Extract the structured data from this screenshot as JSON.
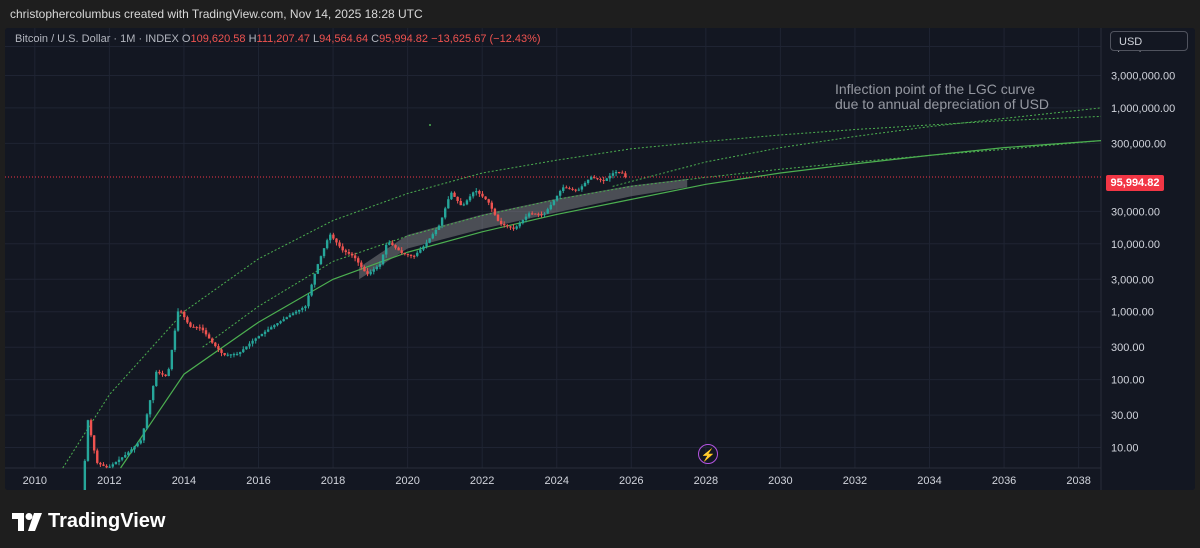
{
  "caption": "christophercolumbus created with TradingView.com, Nov 14, 2025 18:28 UTC",
  "symbol": {
    "name": "Bitcoin / U.S. Dollar · 1M · INDEX",
    "o_label": "O",
    "o": "109,620.58",
    "h_label": "H",
    "h": "111,207.47",
    "l_label": "L",
    "l": "94,564.64",
    "c_label": "C",
    "c": "95,994.82",
    "change": "−13,625.67 (−12.43%)"
  },
  "currency_button": "USD",
  "annotation_line1": "Inflection point of the LGC curve",
  "annotation_line2": "due to annual depreciation of USD",
  "last_price_label": "95,994.82",
  "brand": "TradingView",
  "colors": {
    "background": "#131722",
    "up": "#26a69a",
    "down": "#ef5350",
    "curve": "#4caf50",
    "price_line": "#f23645",
    "bolt": "#b454e0"
  },
  "icons": [
    "bolt-icon",
    "tradingview-logo-icon"
  ],
  "chart_data": {
    "type": "candlestick",
    "scale": "log",
    "x_range": [
      2009.2,
      2038.6
    ],
    "y_range": [
      5,
      15000000
    ],
    "x_ticks": [
      "2010",
      "2012",
      "2014",
      "2016",
      "2018",
      "2020",
      "2022",
      "2024",
      "2026",
      "2028",
      "2030",
      "2032",
      "2034",
      "2036",
      "2038"
    ],
    "y_ticks": [
      {
        "v": 8000000,
        "label": "8,000,000.00"
      },
      {
        "v": 3000000,
        "label": "3,000,000.00"
      },
      {
        "v": 1000000,
        "label": "1,000,000.00"
      },
      {
        "v": 300000,
        "label": "300,000.00"
      },
      {
        "v": 30000,
        "label": "30,000.00"
      },
      {
        "v": 10000,
        "label": "10,000.00"
      },
      {
        "v": 3000,
        "label": "3,000.00"
      },
      {
        "v": 1000,
        "label": "1,000.00"
      },
      {
        "v": 300,
        "label": "300.00"
      },
      {
        "v": 100,
        "label": "100.00"
      },
      {
        "v": 30,
        "label": "30.00"
      },
      {
        "v": 10,
        "label": "10.00"
      }
    ],
    "last_price": 95994.82,
    "price_path": [
      [
        2011.3,
        1
      ],
      [
        2011.45,
        28
      ],
      [
        2011.7,
        6
      ],
      [
        2012.0,
        5
      ],
      [
        2012.5,
        8
      ],
      [
        2012.9,
        13
      ],
      [
        2013.3,
        130
      ],
      [
        2013.6,
        110
      ],
      [
        2013.9,
        1150
      ],
      [
        2014.2,
        600
      ],
      [
        2014.5,
        580
      ],
      [
        2014.8,
        350
      ],
      [
        2015.1,
        230
      ],
      [
        2015.5,
        240
      ],
      [
        2015.9,
        380
      ],
      [
        2016.4,
        600
      ],
      [
        2016.9,
        900
      ],
      [
        2017.3,
        1200
      ],
      [
        2017.6,
        4500
      ],
      [
        2017.95,
        14000
      ],
      [
        2018.3,
        8000
      ],
      [
        2018.6,
        6500
      ],
      [
        2018.95,
        3500
      ],
      [
        2019.3,
        5000
      ],
      [
        2019.5,
        11000
      ],
      [
        2019.9,
        7200
      ],
      [
        2020.2,
        6500
      ],
      [
        2020.5,
        9500
      ],
      [
        2020.9,
        19000
      ],
      [
        2021.2,
        58000
      ],
      [
        2021.5,
        35000
      ],
      [
        2021.85,
        62000
      ],
      [
        2022.2,
        42000
      ],
      [
        2022.5,
        20000
      ],
      [
        2022.9,
        16500
      ],
      [
        2023.3,
        28000
      ],
      [
        2023.7,
        27000
      ],
      [
        2023.95,
        42000
      ],
      [
        2024.2,
        68000
      ],
      [
        2024.6,
        60000
      ],
      [
        2024.95,
        96000
      ],
      [
        2025.3,
        84000
      ],
      [
        2025.6,
        115000
      ],
      [
        2025.8,
        109000
      ],
      [
        2025.87,
        96000
      ]
    ],
    "lines": [
      {
        "style": "dotted",
        "points": [
          [
            2010.75,
            5
          ],
          [
            2012.0,
            60
          ],
          [
            2014.0,
            1000
          ],
          [
            2016.0,
            6000
          ],
          [
            2018.0,
            22000
          ],
          [
            2020.0,
            55000
          ],
          [
            2022.0,
            110000
          ],
          [
            2024.0,
            170000
          ],
          [
            2026.0,
            250000
          ],
          [
            2028.0,
            320000
          ],
          [
            2030.0,
            400000
          ],
          [
            2032.0,
            480000
          ],
          [
            2034.0,
            560000
          ],
          [
            2036.0,
            650000
          ],
          [
            2038.6,
            750000
          ]
        ]
      },
      {
        "style": "dotted",
        "points": [
          [
            2025.5,
            70000
          ],
          [
            2028.0,
            160000
          ],
          [
            2030.0,
            260000
          ],
          [
            2032.0,
            380000
          ],
          [
            2034.0,
            530000
          ],
          [
            2036.0,
            700000
          ],
          [
            2038.6,
            1000000
          ]
        ]
      },
      {
        "style": "solid",
        "points": [
          [
            2012.3,
            5
          ],
          [
            2014.0,
            120
          ],
          [
            2016.0,
            700
          ],
          [
            2018.0,
            3000
          ],
          [
            2020.0,
            7500
          ],
          [
            2022.0,
            15000
          ],
          [
            2024.0,
            27000
          ],
          [
            2026.0,
            45000
          ],
          [
            2028.0,
            75000
          ],
          [
            2030.0,
            110000
          ],
          [
            2032.0,
            150000
          ],
          [
            2034.0,
            200000
          ],
          [
            2036.0,
            260000
          ],
          [
            2038.6,
            330000
          ]
        ]
      },
      {
        "style": "dotted",
        "points": [
          [
            2014.5,
            300
          ],
          [
            2016.0,
            1200
          ],
          [
            2018.0,
            5500
          ],
          [
            2020.0,
            13000
          ],
          [
            2022.0,
            26000
          ],
          [
            2024.0,
            45000
          ],
          [
            2026.0,
            70000
          ],
          [
            2028.0,
            95000
          ],
          [
            2030.0,
            125000
          ],
          [
            2032.0,
            160000
          ],
          [
            2034.0,
            200000
          ],
          [
            2036.0,
            245000
          ],
          [
            2038.6,
            330000
          ]
        ]
      }
    ],
    "band": {
      "upper": [
        [
          2018.7,
          4500
        ],
        [
          2020.0,
          13500
        ],
        [
          2022.0,
          27000
        ],
        [
          2024.0,
          46000
        ],
        [
          2026.0,
          72000
        ],
        [
          2027.5,
          90000
        ]
      ],
      "lower": [
        [
          2018.7,
          3000
        ],
        [
          2020.0,
          8500
        ],
        [
          2022.0,
          16500
        ],
        [
          2024.0,
          29000
        ],
        [
          2026.0,
          50000
        ],
        [
          2027.5,
          68000
        ]
      ]
    }
  }
}
